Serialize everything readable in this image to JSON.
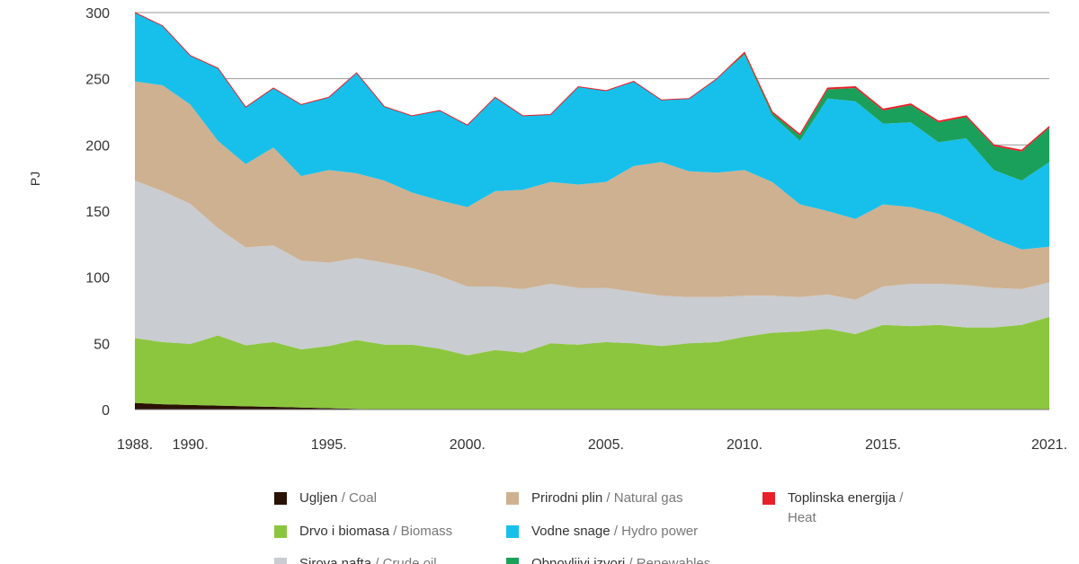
{
  "chart_data": {
    "type": "area",
    "stacked": true,
    "ylabel": "PJ",
    "xlabel": "",
    "ylim": [
      0,
      300
    ],
    "yticks": [
      0,
      50,
      100,
      150,
      200,
      250,
      300
    ],
    "grid": "horizontal",
    "legend_position": "bottom",
    "x": [
      1988,
      1989,
      1990,
      1991,
      1992,
      1993,
      1994,
      1995,
      1996,
      1997,
      1998,
      1999,
      2000,
      2001,
      2002,
      2003,
      2004,
      2005,
      2006,
      2007,
      2008,
      2009,
      2010,
      2011,
      2012,
      2013,
      2014,
      2015,
      2016,
      2017,
      2018,
      2019,
      2020,
      2021
    ],
    "xtick_labels": [
      {
        "x": 1988,
        "label": "1988."
      },
      {
        "x": 1990,
        "label": "1990."
      },
      {
        "x": 1995,
        "label": "1995."
      },
      {
        "x": 2000,
        "label": "2000."
      },
      {
        "x": 2005,
        "label": "2005."
      },
      {
        "x": 2010,
        "label": "2010."
      },
      {
        "x": 2015,
        "label": "2015."
      },
      {
        "x": 2021,
        "label": "2021."
      }
    ],
    "series": [
      {
        "name_hr": "Ugljen",
        "name_en": "Coal",
        "color": "#2a1205",
        "values": [
          5,
          4,
          3.5,
          3,
          2.5,
          2,
          1.5,
          1,
          0.5,
          0,
          0,
          0,
          0,
          0,
          0,
          0,
          0,
          0,
          0,
          0,
          0,
          0,
          0,
          0,
          0,
          0,
          0,
          0,
          0,
          0,
          0,
          0,
          0,
          0
        ]
      },
      {
        "name_hr": "Drvo i biomasa",
        "name_en": "Biomass",
        "color": "#8cc63f",
        "values": [
          49,
          47,
          46,
          53,
          46,
          49,
          44,
          47,
          52,
          49,
          49,
          46,
          41,
          45,
          43,
          50,
          49,
          51,
          50,
          48,
          50,
          51,
          55,
          58,
          59,
          61,
          57,
          64,
          63,
          64,
          62,
          62,
          64,
          70
        ]
      },
      {
        "name_hr": "Sirova nafta",
        "name_en": "Crude oil",
        "color": "#c9ccd0",
        "values": [
          119,
          114,
          106,
          81,
          74,
          73,
          67,
          63,
          62,
          62,
          58,
          55,
          52,
          48,
          48,
          45,
          43,
          41,
          39,
          38,
          35,
          34,
          31,
          28,
          26,
          26,
          26,
          29,
          32,
          31,
          32,
          30,
          27,
          26
        ]
      },
      {
        "name_hr": "Prirodni plin",
        "name_en": "Natural gas",
        "color": "#ceb190",
        "values": [
          75,
          80,
          75,
          66,
          63,
          74,
          64,
          70,
          64,
          62,
          57,
          57,
          60,
          72,
          75,
          77,
          78,
          80,
          95,
          101,
          95,
          94,
          95,
          86,
          70,
          63,
          61,
          62,
          58,
          53,
          45,
          37,
          30,
          27
        ]
      },
      {
        "name_hr": "Vodne snage",
        "name_en": "Hydro power",
        "color": "#17c0eb",
        "values": [
          52,
          45,
          37,
          55,
          43,
          45,
          54,
          55,
          76,
          56,
          58,
          68,
          62,
          71,
          56,
          51,
          74,
          69,
          64,
          47,
          55,
          71,
          87,
          50,
          48,
          85,
          89,
          61,
          64,
          54,
          66,
          52,
          52,
          64
        ]
      },
      {
        "name_hr": "Obnovljivi izvori",
        "name_en": "Renewables",
        "color": "#1aa05a",
        "values": [
          0,
          0,
          0,
          0,
          0,
          0,
          0,
          0,
          0,
          0,
          0,
          0,
          0,
          0,
          0,
          0,
          0,
          0,
          0,
          0,
          0,
          0,
          1,
          2,
          4,
          7,
          10,
          10,
          13,
          15,
          16,
          18,
          22,
          26
        ]
      },
      {
        "name_hr": "Toplinska energija",
        "name_en": "Heat",
        "color": "#e8202a",
        "values": [
          0,
          0,
          0,
          0,
          0,
          0,
          0,
          0,
          0,
          0,
          0,
          0,
          0,
          0,
          0,
          0,
          0,
          0,
          0,
          0,
          0,
          0,
          1,
          1,
          1,
          1,
          1,
          1,
          1,
          1,
          1,
          1,
          1,
          1
        ]
      }
    ]
  }
}
